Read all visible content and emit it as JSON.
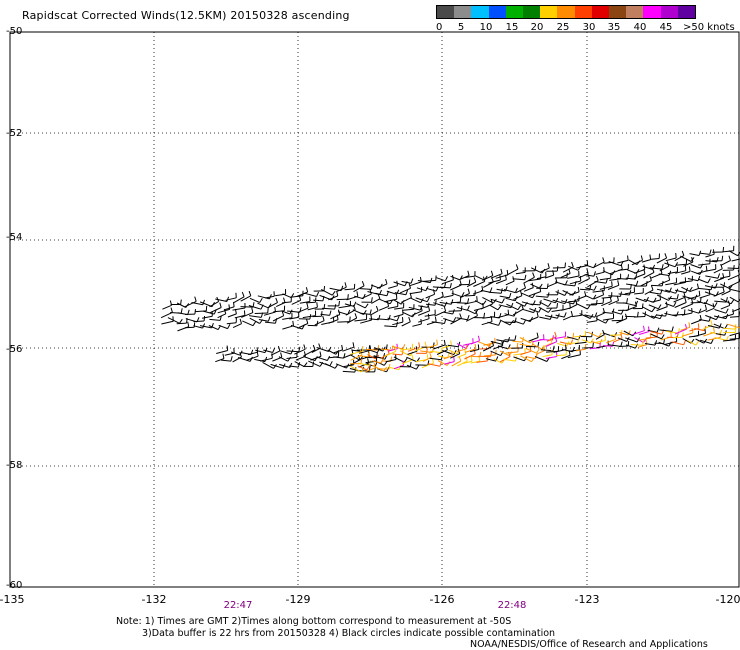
{
  "title": "Rapidscat Corrected Winds(12.5KM) 20150328 ascending",
  "legend": {
    "labels": [
      "0",
      "5",
      "10",
      "15",
      "20",
      "25",
      "30",
      "35",
      "40",
      "45",
      ">50 knots"
    ],
    "colors": [
      "#4a4a4a",
      "#8c8c8c",
      "#00c0ff",
      "#0050ff",
      "#00b000",
      "#008000",
      "#ffd000",
      "#ff8c00",
      "#ff4000",
      "#e00000",
      "#8b4513",
      "#c08060",
      "#ff00ff",
      "#b000d0",
      "#6000a0"
    ]
  },
  "map": {
    "lat_ticks": [
      "-50",
      "-52",
      "-54",
      "-56",
      "-58",
      "-60"
    ],
    "lon_ticks": [
      "-135",
      "-132",
      "-129",
      "-126",
      "-123",
      "-120"
    ],
    "time_labels": [
      "22:47",
      "22:48"
    ]
  },
  "notes": {
    "line1": "Note: 1) Times are GMT 2)Times along bottom correspond to measurement at -50S",
    "line2": "3)Data buffer is 22 hrs from 20150328 4) Black circles indicate possible contamination",
    "line3": "NOAA/NESDIS/Office of Research and Applications"
  }
}
